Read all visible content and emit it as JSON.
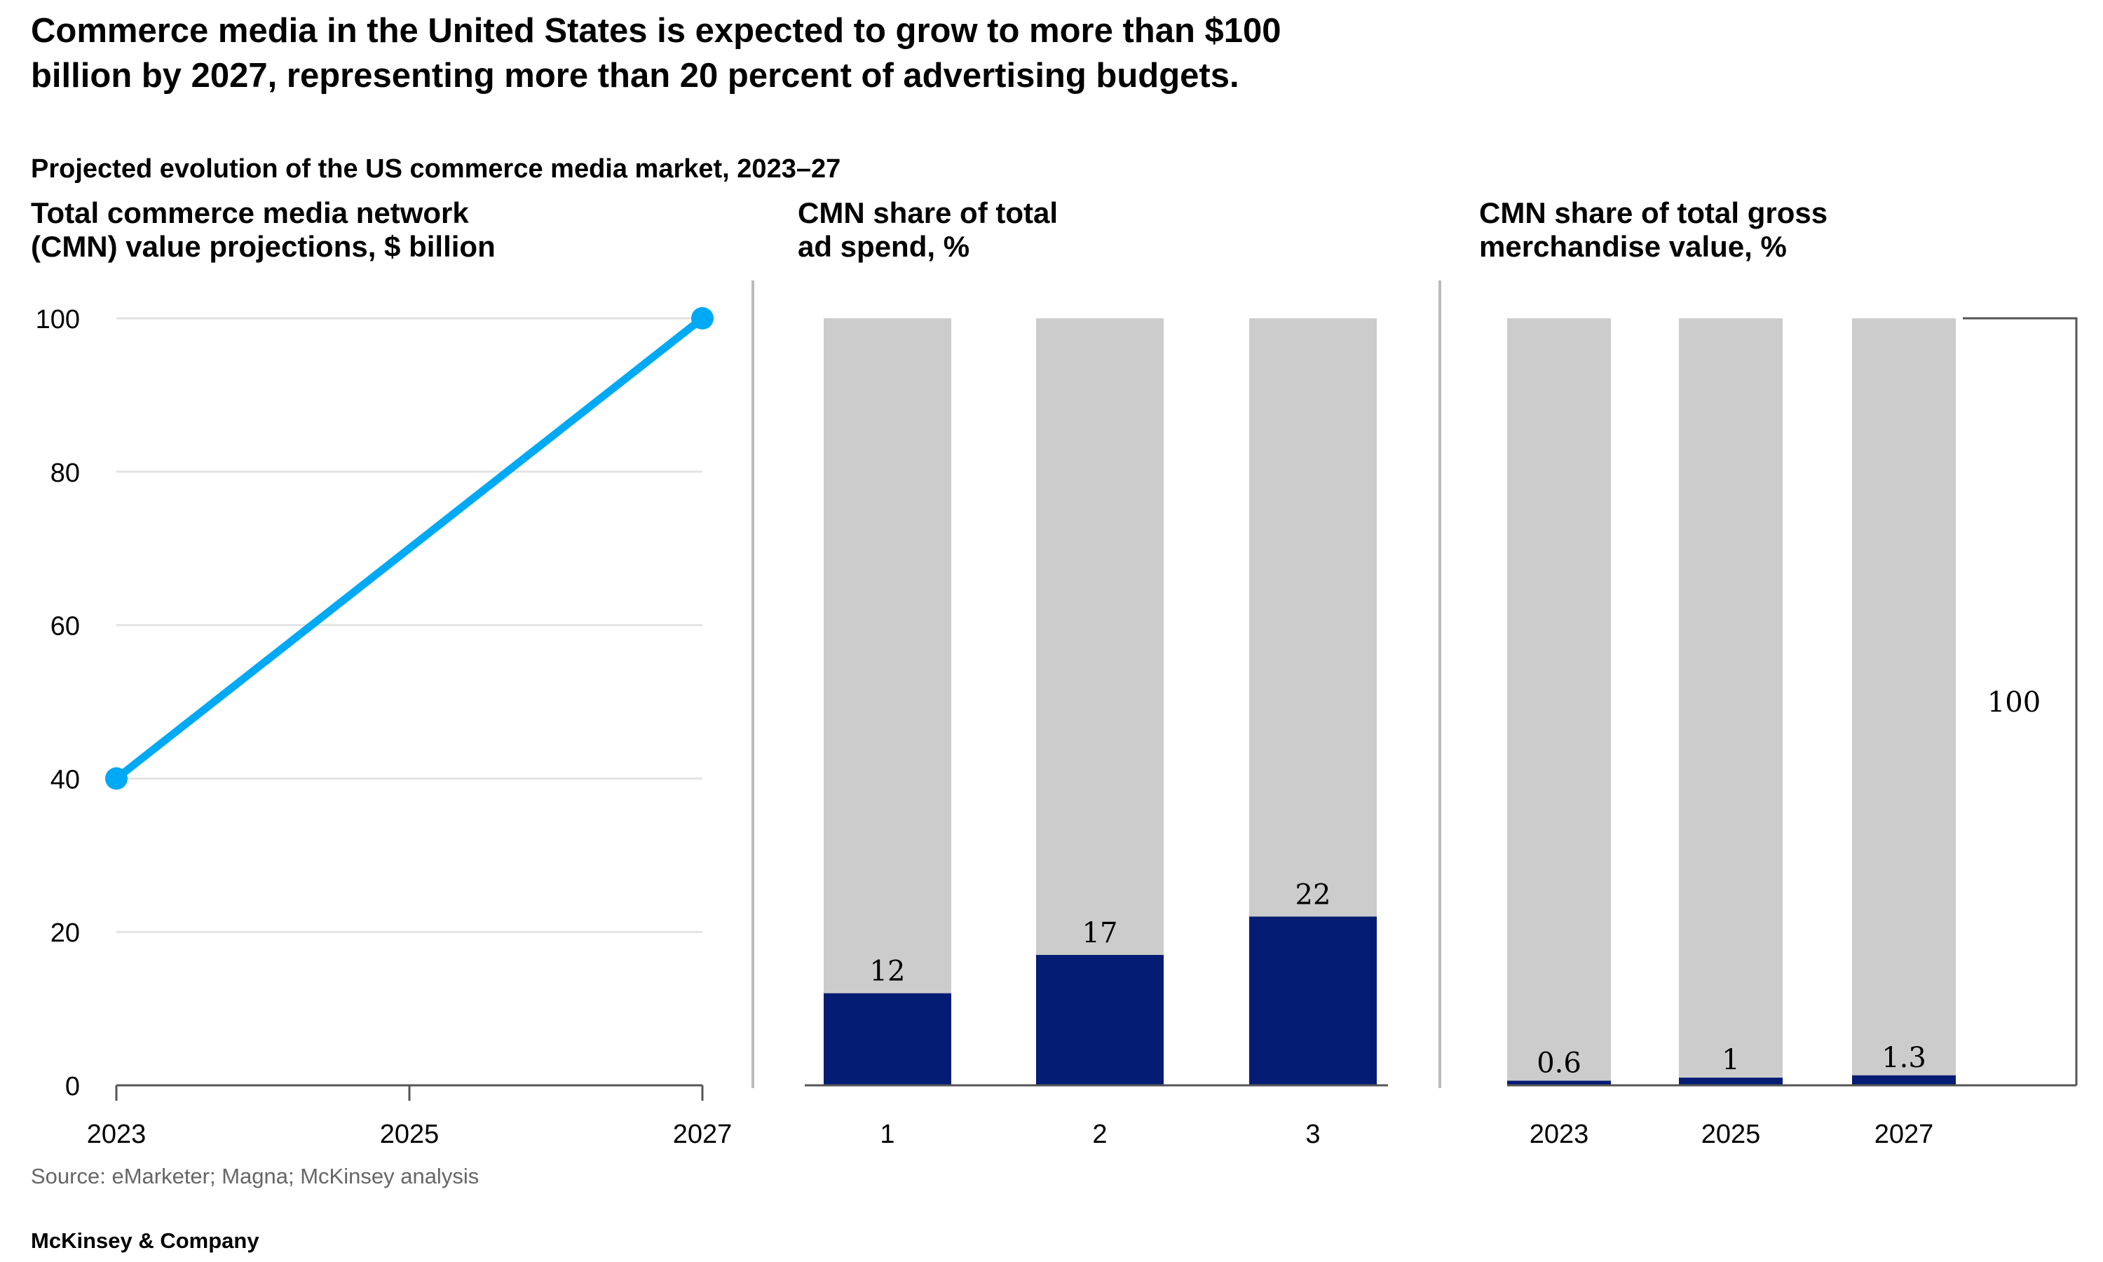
{
  "headline": {
    "line1": "Commerce media in the United States is expected to grow to more than $100",
    "line2": "billion by 2027, representing more than 20 percent of advertising budgets."
  },
  "subtitle": "Projected evolution of the US commerce media market, 2023–27",
  "source": "Source: eMarketer; Magna; McKinsey analysis",
  "footer": "McKinsey & Company",
  "colors": {
    "line": "#00A9F4",
    "bar_share": "#051C74",
    "bar_total": "#CCCCCC",
    "grid": "#E3E3E3",
    "axis": "#555555",
    "divider": "#BBBBBB",
    "bracket": "#555555"
  },
  "chart_data": [
    {
      "type": "line",
      "title_lines": [
        "Total commerce media network",
        "(CMN) value projections, $ billion"
      ],
      "x": [
        "2023",
        "2025",
        "2027"
      ],
      "series": [
        {
          "points": [
            {
              "x": "2023",
              "y": 40
            },
            {
              "x": "2027",
              "y": 100
            }
          ]
        }
      ],
      "ylim": [
        0,
        100
      ],
      "yticks": [
        "0",
        "20",
        "40",
        "60",
        "80",
        "100"
      ],
      "grid": true
    },
    {
      "type": "bar",
      "stacked": true,
      "title_lines": [
        "CMN share of total",
        "ad spend, %"
      ],
      "categories": [
        "1",
        "2",
        "3"
      ],
      "values": [
        12,
        17,
        22
      ],
      "value_labels": [
        "12",
        "17",
        "22"
      ],
      "total": 100,
      "ylim": [
        0,
        100
      ]
    },
    {
      "type": "bar",
      "stacked": true,
      "title_lines": [
        "CMN share of total gross",
        "merchandise value, %"
      ],
      "categories": [
        "2023",
        "2025",
        "2027"
      ],
      "values": [
        0.6,
        1,
        1.3
      ],
      "value_labels": [
        "0.6",
        "1",
        "1.3"
      ],
      "total": 100,
      "total_label": "100",
      "ylim": [
        0,
        100
      ]
    }
  ]
}
